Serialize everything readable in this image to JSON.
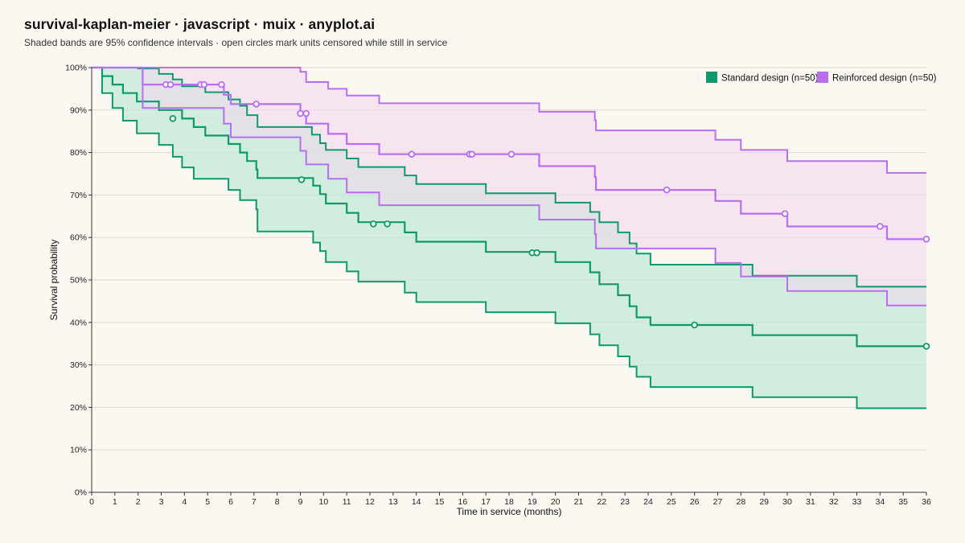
{
  "chart_data": {
    "type": "line",
    "title": "survival-kaplan-meier · javascript · muix · anyplot.ai",
    "subtitle": "Shaded bands are 95% confidence intervals · open circles mark units censored while still in service",
    "xlabel": "Time in service (months)",
    "ylabel": "Survival probability",
    "xlim": [
      0,
      36
    ],
    "ylim": [
      0,
      1
    ],
    "xticks": [
      0,
      1,
      2,
      3,
      4,
      5,
      6,
      7,
      8,
      9,
      10,
      11,
      12,
      13,
      14,
      15,
      16,
      17,
      18,
      19,
      20,
      21,
      22,
      23,
      24,
      25,
      26,
      27,
      28,
      29,
      30,
      31,
      32,
      33,
      34,
      35,
      36
    ],
    "yticks": [
      0,
      0.1,
      0.2,
      0.3,
      0.4,
      0.5,
      0.6,
      0.7,
      0.8,
      0.9,
      1.0
    ],
    "ytick_labels": [
      "0%",
      "10%",
      "20%",
      "30%",
      "40%",
      "50%",
      "60%",
      "70%",
      "80%",
      "90%",
      "100%"
    ],
    "grid": "horizontal",
    "legend_position": "top-right",
    "series": [
      {
        "name": "Standard design (n=50)",
        "color": "#0E9A6C",
        "band_color": "#BFE8D5",
        "steps": [
          [
            0,
            1.0
          ],
          [
            0.45,
            0.98
          ],
          [
            0.9,
            0.96
          ],
          [
            1.35,
            0.94
          ],
          [
            1.95,
            0.92
          ],
          [
            2.9,
            0.9
          ],
          [
            3.9,
            0.88
          ],
          [
            4.4,
            0.86
          ],
          [
            4.9,
            0.84
          ],
          [
            5.9,
            0.82
          ],
          [
            6.4,
            0.8
          ],
          [
            6.7,
            0.78
          ],
          [
            7.1,
            0.76
          ],
          [
            7.15,
            0.74
          ],
          [
            8.2,
            0.74
          ],
          [
            9.55,
            0.722
          ],
          [
            9.85,
            0.702
          ],
          [
            10.1,
            0.68
          ],
          [
            11,
            0.658
          ],
          [
            11.5,
            0.636
          ],
          [
            13.5,
            0.612
          ],
          [
            14,
            0.59
          ],
          [
            17,
            0.566
          ],
          [
            20,
            0.542
          ],
          [
            21.5,
            0.518
          ],
          [
            21.9,
            0.49
          ],
          [
            22.7,
            0.464
          ],
          [
            23.2,
            0.438
          ],
          [
            23.5,
            0.412
          ],
          [
            24.1,
            0.394
          ],
          [
            28.5,
            0.37
          ],
          [
            33,
            0.344
          ],
          [
            36,
            0.344
          ]
        ],
        "lower": [
          [
            0,
            1.0
          ],
          [
            0.45,
            0.94
          ],
          [
            0.9,
            0.905
          ],
          [
            1.35,
            0.875
          ],
          [
            1.95,
            0.845
          ],
          [
            2.9,
            0.818
          ],
          [
            3.5,
            0.79
          ],
          [
            3.9,
            0.765
          ],
          [
            4.4,
            0.738
          ],
          [
            5.9,
            0.712
          ],
          [
            6.4,
            0.688
          ],
          [
            7.1,
            0.666
          ],
          [
            7.15,
            0.645
          ],
          [
            7.15,
            0.614
          ],
          [
            9.55,
            0.588
          ],
          [
            9.85,
            0.568
          ],
          [
            10.1,
            0.542
          ],
          [
            11,
            0.52
          ],
          [
            11.5,
            0.496
          ],
          [
            13.5,
            0.47
          ],
          [
            14,
            0.448
          ],
          [
            17,
            0.424
          ],
          [
            20,
            0.398
          ],
          [
            21.5,
            0.372
          ],
          [
            21.9,
            0.346
          ],
          [
            22.7,
            0.32
          ],
          [
            23.2,
            0.296
          ],
          [
            23.5,
            0.272
          ],
          [
            24.1,
            0.248
          ],
          [
            28.5,
            0.224
          ],
          [
            33,
            0.198
          ],
          [
            36,
            0.198
          ]
        ],
        "upper": [
          [
            0,
            1.0
          ],
          [
            0.45,
            1.0
          ],
          [
            2.0,
            0.998
          ],
          [
            2.9,
            0.985
          ],
          [
            3.5,
            0.972
          ],
          [
            3.9,
            0.956
          ],
          [
            4.9,
            0.942
          ],
          [
            5.9,
            0.925
          ],
          [
            6.4,
            0.91
          ],
          [
            6.7,
            0.888
          ],
          [
            7.15,
            0.86
          ],
          [
            9.5,
            0.842
          ],
          [
            9.85,
            0.822
          ],
          [
            10.1,
            0.806
          ],
          [
            11,
            0.786
          ],
          [
            11.5,
            0.766
          ],
          [
            13.5,
            0.746
          ],
          [
            14,
            0.726
          ],
          [
            17,
            0.704
          ],
          [
            20,
            0.682
          ],
          [
            21.5,
            0.66
          ],
          [
            21.9,
            0.636
          ],
          [
            22.7,
            0.612
          ],
          [
            23.2,
            0.586
          ],
          [
            23.5,
            0.562
          ],
          [
            24.1,
            0.536
          ],
          [
            28.5,
            0.51
          ],
          [
            33,
            0.484
          ],
          [
            36,
            0.484
          ]
        ],
        "censored": [
          [
            3.5,
            0.88
          ],
          [
            9.05,
            0.736
          ],
          [
            12.15,
            0.632
          ],
          [
            12.75,
            0.632
          ],
          [
            19.0,
            0.564
          ],
          [
            19.2,
            0.564
          ],
          [
            26.0,
            0.394
          ],
          [
            36,
            0.344
          ]
        ]
      },
      {
        "name": "Reinforced design (n=50)",
        "color": "#B86EF0",
        "band_color": "#F2D6EE",
        "steps": [
          [
            0,
            1.0
          ],
          [
            2.2,
            0.96
          ],
          [
            5.7,
            0.936
          ],
          [
            6.0,
            0.914
          ],
          [
            9.0,
            0.892
          ],
          [
            9.25,
            0.868
          ],
          [
            10.2,
            0.844
          ],
          [
            11.0,
            0.82
          ],
          [
            12.4,
            0.796
          ],
          [
            19.3,
            0.768
          ],
          [
            21.7,
            0.742
          ],
          [
            21.75,
            0.712
          ],
          [
            26.9,
            0.686
          ],
          [
            28.0,
            0.656
          ],
          [
            30.0,
            0.626
          ],
          [
            34.3,
            0.596
          ],
          [
            36,
            0.596
          ]
        ],
        "lower": [
          [
            0,
            1.0
          ],
          [
            2.2,
            0.905
          ],
          [
            5.7,
            0.868
          ],
          [
            6.0,
            0.836
          ],
          [
            9.0,
            0.804
          ],
          [
            9.25,
            0.772
          ],
          [
            10.2,
            0.738
          ],
          [
            11.0,
            0.706
          ],
          [
            12.4,
            0.676
          ],
          [
            19.3,
            0.642
          ],
          [
            21.7,
            0.608
          ],
          [
            21.75,
            0.574
          ],
          [
            26.9,
            0.54
          ],
          [
            28.0,
            0.508
          ],
          [
            30.0,
            0.474
          ],
          [
            34.3,
            0.44
          ],
          [
            36,
            0.44
          ]
        ],
        "upper": [
          [
            0,
            1.0
          ],
          [
            9.0,
            0.99
          ],
          [
            9.25,
            0.98
          ],
          [
            9.25,
            0.966
          ],
          [
            10.2,
            0.95
          ],
          [
            11.0,
            0.934
          ],
          [
            12.4,
            0.916
          ],
          [
            19.3,
            0.896
          ],
          [
            21.7,
            0.876
          ],
          [
            21.75,
            0.852
          ],
          [
            26.9,
            0.83
          ],
          [
            28.0,
            0.806
          ],
          [
            30.0,
            0.78
          ],
          [
            34.3,
            0.752
          ],
          [
            36,
            0.752
          ]
        ],
        "censored": [
          [
            3.2,
            0.96
          ],
          [
            3.4,
            0.96
          ],
          [
            4.7,
            0.96
          ],
          [
            4.85,
            0.96
          ],
          [
            5.6,
            0.96
          ],
          [
            7.1,
            0.914
          ],
          [
            9.0,
            0.892
          ],
          [
            9.25,
            0.892
          ],
          [
            13.8,
            0.796
          ],
          [
            16.3,
            0.796
          ],
          [
            16.4,
            0.796
          ],
          [
            18.1,
            0.796
          ],
          [
            24.8,
            0.712
          ],
          [
            29.9,
            0.656
          ],
          [
            34.0,
            0.626
          ],
          [
            36,
            0.596
          ]
        ]
      }
    ]
  }
}
